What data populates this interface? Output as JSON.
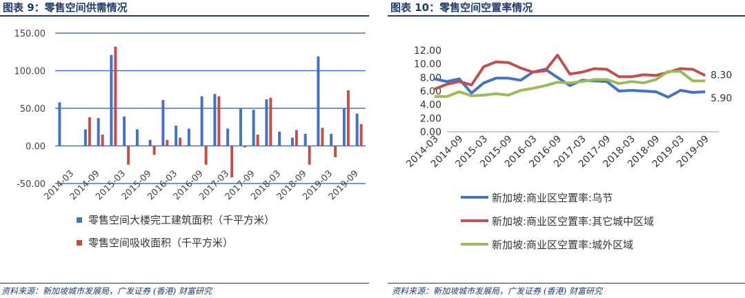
{
  "left": {
    "title": "图表 9：零售空间供需情况",
    "source": "资料来源：新加坡城市发展局，广发证券 (香港) 财富研究"
  },
  "right": {
    "title": "图表 10：零售空间空置率情况",
    "source": "资料来源：新加坡城市发展局，广发证券 (香港) 财富研究"
  },
  "colors": {
    "blue": "#4472c4",
    "red": "#c0504d",
    "green": "#9bbb59",
    "navy": "#1f3b6e"
  },
  "chart_data": [
    {
      "type": "bar",
      "x_tick_labels": [
        "2014-03",
        "2014-09",
        "2015-03",
        "2015-09",
        "2016-03",
        "2016-09",
        "2017-03",
        "2017-09",
        "2018-03",
        "2018-09",
        "2019-03",
        "2019-09"
      ],
      "y_tick_labels": [
        "150.00",
        "100.00",
        "50.00",
        "0.00",
        "-50.00"
      ],
      "ylim": [
        -50,
        150
      ],
      "grid": true,
      "legend_position": "bottom",
      "series": [
        {
          "name": "零售空间大楼完工建筑面积（千平方米）",
          "color": "#4472c4",
          "values": [
            58,
            null,
            22,
            37,
            121,
            39,
            22,
            8,
            61,
            27,
            23,
            66,
            69,
            23,
            50,
            48,
            62,
            19,
            11,
            16,
            119,
            16,
            50,
            43
          ]
        },
        {
          "name": "零售空间吸收面积（千平方米）",
          "color": "#c0504d",
          "values": [
            null,
            null,
            38,
            15,
            132,
            -25,
            null,
            -12,
            8,
            11,
            null,
            -25,
            66,
            -42,
            -2,
            15,
            64,
            null,
            21,
            -25,
            24,
            -15,
            74,
            29
          ]
        }
      ]
    },
    {
      "type": "line",
      "x": [
        "2014-03",
        "2014-06",
        "2014-09",
        "2014-12",
        "2015-03",
        "2015-06",
        "2015-09",
        "2015-12",
        "2016-03",
        "2016-06",
        "2016-09",
        "2016-12",
        "2017-03",
        "2017-06",
        "2017-09",
        "2017-12",
        "2018-03",
        "2018-06",
        "2018-09",
        "2018-12",
        "2019-03",
        "2019-06",
        "2019-09",
        "2019-12"
      ],
      "x_tick_labels": [
        "2014-03",
        "2014-09",
        "2015-03",
        "2015-09",
        "2016-03",
        "2016-09",
        "2017-03",
        "2017-09",
        "2018-03",
        "2018-09",
        "2019-03",
        "2019-09"
      ],
      "y_tick_labels": [
        "12.00",
        "10.00",
        "8.00",
        "6.00",
        "4.00",
        "2.00",
        "0.00"
      ],
      "ylim": [
        0,
        12
      ],
      "grid": false,
      "legend_position": "bottom",
      "series": [
        {
          "name": "新加坡:商业区空置率:乌节",
          "color": "#4472c4",
          "values": [
            7.8,
            7.4,
            7.8,
            5.7,
            7.2,
            7.9,
            7.9,
            7.6,
            8.8,
            9.2,
            8.0,
            6.8,
            7.6,
            7.5,
            7.4,
            6.0,
            6.1,
            6.0,
            5.9,
            5.1,
            6.1,
            5.8,
            5.9,
            null
          ]
        },
        {
          "name": "新加坡:商业区空置率:其它城中区域",
          "color": "#c0504d",
          "values": [
            6.3,
            7.0,
            7.4,
            6.9,
            9.6,
            10.3,
            10.2,
            9.4,
            8.8,
            9.0,
            11.3,
            8.5,
            8.8,
            9.3,
            9.2,
            8.1,
            8.1,
            8.4,
            8.3,
            8.8,
            9.3,
            9.2,
            8.3,
            null
          ]
        },
        {
          "name": "新加坡:商业区空置率:城外区域",
          "color": "#9bbb59",
          "values": [
            5.2,
            5.2,
            5.9,
            5.3,
            5.4,
            5.6,
            5.4,
            6.1,
            6.4,
            6.8,
            7.3,
            7.2,
            7.4,
            7.7,
            7.7,
            7.1,
            7.4,
            7.2,
            7.7,
            8.9,
            8.9,
            7.5,
            7.5,
            null
          ]
        }
      ],
      "end_labels": [
        "8.30",
        "5.90"
      ]
    }
  ]
}
